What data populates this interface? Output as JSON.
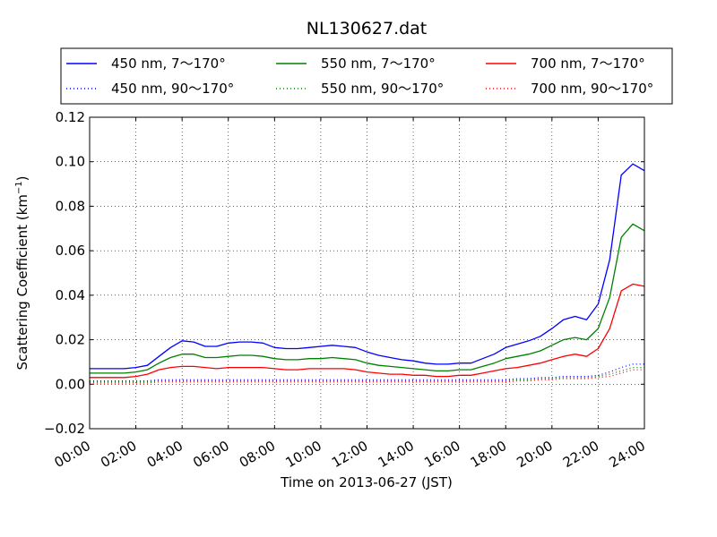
{
  "chart_data": {
    "type": "line",
    "title": "NL130627.dat",
    "xlabel": "Time on 2013-06-27 (JST)",
    "ylabel_main": "Scattering Coefficient (km",
    "ylabel_sup": "−1",
    "ylabel_end": ")",
    "xlim": [
      "00:00",
      "24:00"
    ],
    "ylim": [
      -0.02,
      0.12
    ],
    "grid": true,
    "legend_placement": "top, above plot",
    "x_ticks": [
      "00:00",
      "02:00",
      "04:00",
      "06:00",
      "08:00",
      "10:00",
      "12:00",
      "14:00",
      "16:00",
      "18:00",
      "20:00",
      "22:00",
      "24:00"
    ],
    "y_ticks": [
      "−0.02",
      "0.00",
      "0.02",
      "0.04",
      "0.06",
      "0.08",
      "0.10",
      "0.12"
    ],
    "y_tick_values": [
      -0.02,
      0.0,
      0.02,
      0.04,
      0.06,
      0.08,
      0.1,
      0.12
    ],
    "x_hours": [
      0,
      0.5,
      1,
      1.5,
      2,
      2.5,
      3,
      3.5,
      4,
      4.5,
      5,
      5.5,
      6,
      6.5,
      7,
      7.5,
      8,
      8.5,
      9,
      9.5,
      10,
      10.5,
      11,
      11.5,
      12,
      12.5,
      13,
      13.5,
      14,
      14.5,
      15,
      15.5,
      16,
      16.5,
      17,
      17.5,
      18,
      18.5,
      19,
      19.5,
      20,
      20.5,
      21,
      21.5,
      22,
      22.5,
      23,
      23.5,
      24
    ],
    "series": [
      {
        "name": "450 nm, 7～170°",
        "color": "#0000ff",
        "style": "solid",
        "values": [
          0.007,
          0.007,
          0.007,
          0.007,
          0.0075,
          0.0085,
          0.0125,
          0.0165,
          0.0195,
          0.019,
          0.017,
          0.017,
          0.0185,
          0.019,
          0.019,
          0.0185,
          0.0165,
          0.016,
          0.016,
          0.0165,
          0.017,
          0.0175,
          0.017,
          0.0165,
          0.0145,
          0.013,
          0.012,
          0.011,
          0.0105,
          0.0095,
          0.009,
          0.009,
          0.0095,
          0.0095,
          0.0115,
          0.0135,
          0.0165,
          0.018,
          0.0195,
          0.0215,
          0.025,
          0.029,
          0.0305,
          0.029,
          0.036,
          0.056,
          0.094,
          0.099,
          0.096
        ]
      },
      {
        "name": "450 nm, 90～170°",
        "color": "#0000ff",
        "style": "dotted",
        "values": [
          0.0015,
          0.0015,
          0.0015,
          0.0015,
          0.0015,
          0.0015,
          0.002,
          0.002,
          0.002,
          0.002,
          0.002,
          0.002,
          0.002,
          0.002,
          0.002,
          0.002,
          0.002,
          0.002,
          0.002,
          0.002,
          0.002,
          0.002,
          0.002,
          0.002,
          0.002,
          0.002,
          0.002,
          0.002,
          0.002,
          0.002,
          0.002,
          0.002,
          0.002,
          0.002,
          0.002,
          0.002,
          0.002,
          0.0025,
          0.0025,
          0.003,
          0.003,
          0.0035,
          0.0035,
          0.0035,
          0.004,
          0.0055,
          0.0075,
          0.009,
          0.009
        ]
      },
      {
        "name": "550 nm, 7～170°",
        "color": "#008000",
        "style": "solid",
        "values": [
          0.005,
          0.005,
          0.005,
          0.005,
          0.0055,
          0.0065,
          0.0095,
          0.012,
          0.0135,
          0.0135,
          0.012,
          0.012,
          0.0125,
          0.013,
          0.013,
          0.0125,
          0.0115,
          0.011,
          0.011,
          0.0115,
          0.0115,
          0.012,
          0.0115,
          0.011,
          0.0095,
          0.0085,
          0.008,
          0.0075,
          0.007,
          0.0065,
          0.006,
          0.006,
          0.0065,
          0.0065,
          0.008,
          0.0095,
          0.0115,
          0.0125,
          0.0135,
          0.015,
          0.0175,
          0.02,
          0.021,
          0.02,
          0.025,
          0.039,
          0.066,
          0.072,
          0.069
        ]
      },
      {
        "name": "550 nm, 90～170°",
        "color": "#008000",
        "style": "dotted",
        "values": [
          0.001,
          0.001,
          0.001,
          0.001,
          0.001,
          0.001,
          0.0015,
          0.0015,
          0.0015,
          0.0015,
          0.0015,
          0.0015,
          0.0015,
          0.0015,
          0.0015,
          0.0015,
          0.0015,
          0.0015,
          0.0015,
          0.0015,
          0.0015,
          0.0015,
          0.0015,
          0.0015,
          0.0015,
          0.0015,
          0.0015,
          0.0015,
          0.0015,
          0.0015,
          0.0015,
          0.0015,
          0.0015,
          0.0015,
          0.0015,
          0.0015,
          0.0015,
          0.002,
          0.002,
          0.0025,
          0.0025,
          0.003,
          0.003,
          0.003,
          0.0035,
          0.0045,
          0.006,
          0.0075,
          0.0075
        ]
      },
      {
        "name": "700 nm, 7～170°",
        "color": "#ff0000",
        "style": "solid",
        "values": [
          0.003,
          0.003,
          0.003,
          0.003,
          0.0035,
          0.0045,
          0.0065,
          0.0075,
          0.008,
          0.008,
          0.0075,
          0.007,
          0.0075,
          0.0075,
          0.0075,
          0.0075,
          0.007,
          0.0065,
          0.0065,
          0.007,
          0.007,
          0.007,
          0.007,
          0.0065,
          0.0055,
          0.005,
          0.0045,
          0.0045,
          0.004,
          0.004,
          0.0035,
          0.0035,
          0.004,
          0.004,
          0.005,
          0.006,
          0.007,
          0.0075,
          0.0085,
          0.0095,
          0.011,
          0.0125,
          0.0135,
          0.0125,
          0.016,
          0.025,
          0.042,
          0.045,
          0.044
        ]
      },
      {
        "name": "700 nm, 90～170°",
        "color": "#ff0000",
        "style": "dotted",
        "values": [
          0.0005,
          0.0005,
          0.0005,
          0.0005,
          0.0005,
          0.0005,
          0.001,
          0.001,
          0.001,
          0.001,
          0.001,
          0.001,
          0.001,
          0.001,
          0.001,
          0.001,
          0.001,
          0.001,
          0.001,
          0.001,
          0.001,
          0.001,
          0.001,
          0.001,
          0.001,
          0.001,
          0.001,
          0.001,
          0.001,
          0.001,
          0.001,
          0.001,
          0.001,
          0.001,
          0.001,
          0.001,
          0.001,
          0.0015,
          0.0015,
          0.002,
          0.002,
          0.0025,
          0.0025,
          0.0025,
          0.003,
          0.0035,
          0.005,
          0.0065,
          0.0065
        ]
      }
    ]
  }
}
